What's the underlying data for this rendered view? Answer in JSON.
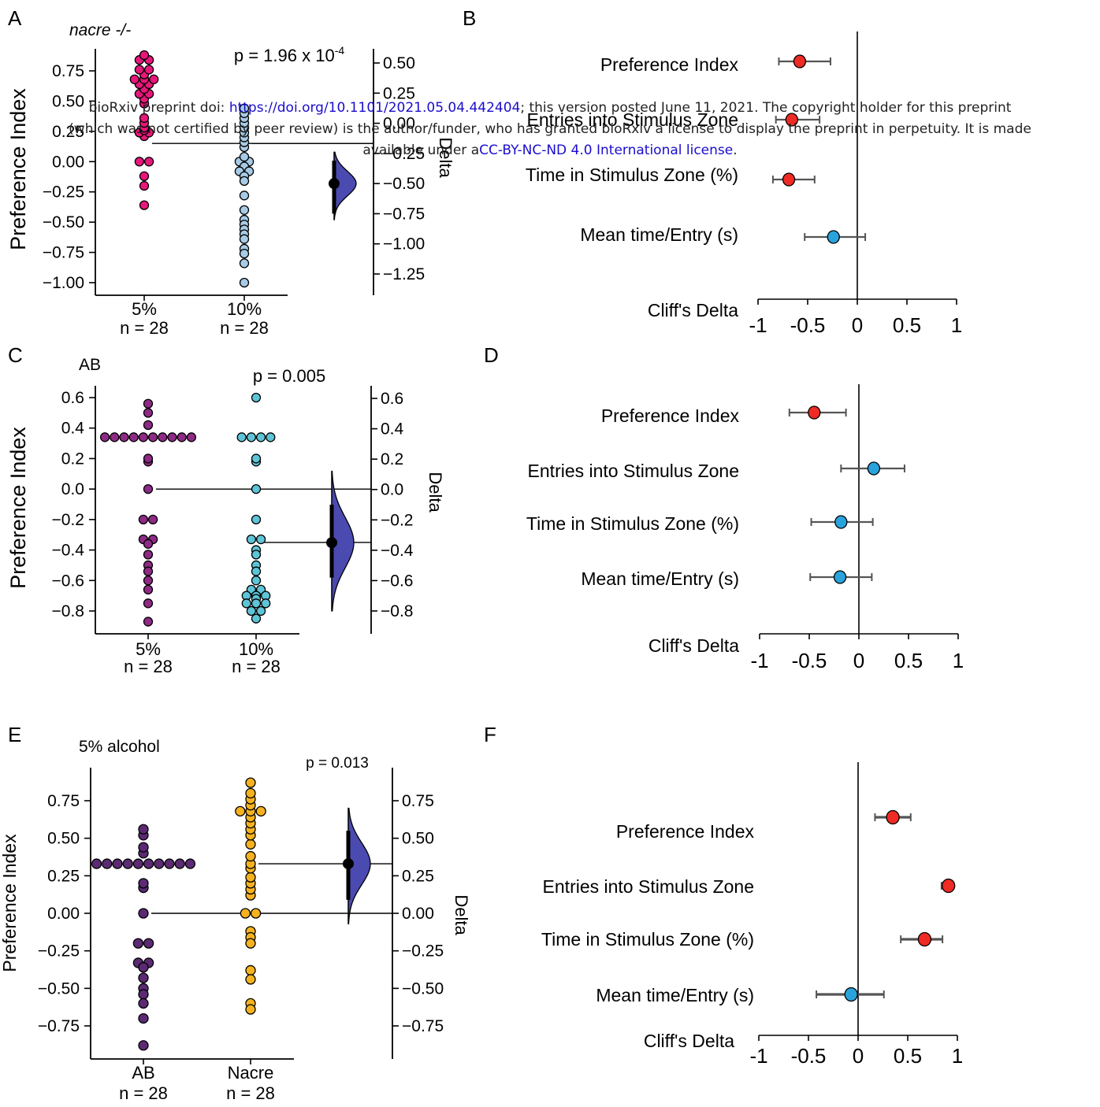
{
  "notice": {
    "line1_pre": "bioRxiv preprint doi: ",
    "doi_link": "https://doi.org/10.1101/2021.05.04.442404",
    "line1_post": "; this version posted June 11, 2021. The copyright holder for this preprint",
    "line2": "(which was not certified by peer review) is the author/funder, who has granted bioRxiv a license to display the preprint in perpetuity. It is made",
    "line3_pre": "available under a",
    "license_link": "CC-BY-NC-ND 4.0 International license",
    "line3_post": "."
  },
  "colors": {
    "pink": "#e8177a",
    "lightblue": "#a7cbe6",
    "purple": "#8e2a86",
    "cyan": "#5ec4d7",
    "darkpurple": "#5b2a73",
    "gold": "#f6b21e",
    "halfviolin": "#4a4ab0",
    "red": "#ee2b24",
    "blue": "#2aa3dc"
  },
  "chart_data": [
    {
      "panel": "A",
      "type": "scatter",
      "title": "nacre -/-",
      "ylabel": "Preference Index",
      "y2label": "Delta",
      "pvalue": "p = 1.96 x 10",
      "pvalue_exp": "-4",
      "ylim": [
        -1.05,
        0.85
      ],
      "yticks": [
        "0.75",
        "0.50",
        "0.25",
        "0.00",
        "−0.25",
        "−0.50",
        "−0.75",
        "−1.00"
      ],
      "ytick_values": [
        0.75,
        0.5,
        0.25,
        0.0,
        -0.25,
        -0.5,
        -0.75,
        -1.0
      ],
      "y2ticks": [
        "0.50",
        "0.25",
        "0.00",
        "−0.25",
        "−0.50",
        "−0.75",
        "−1.00",
        "−1.25"
      ],
      "y2tick_values": [
        0.5,
        0.25,
        0.0,
        -0.25,
        -0.5,
        -0.75,
        -1.0,
        -1.25
      ],
      "groups": [
        {
          "name": "5%",
          "n": "n = 28",
          "color": "pink",
          "mean": 0.15,
          "values": [
            0.88,
            0.84,
            0.84,
            0.76,
            0.76,
            0.72,
            0.68,
            0.68,
            0.68,
            0.64,
            0.64,
            0.6,
            0.56,
            0.56,
            0.52,
            0.48,
            0.36,
            0.32,
            0.28,
            0.26,
            0.24,
            0.24,
            0.21,
            0.0,
            0.0,
            -0.12,
            -0.2,
            -0.36
          ]
        },
        {
          "name": "10%",
          "n": "n = 28",
          "color": "lightblue",
          "mean": 0.15,
          "values": [
            0.44,
            0.4,
            0.36,
            0.32,
            0.28,
            0.24,
            0.2,
            0.16,
            0.12,
            0.04,
            0.0,
            0.0,
            -0.04,
            -0.08,
            -0.08,
            -0.12,
            -0.16,
            -0.28,
            -0.4,
            -0.48,
            -0.52,
            -0.56,
            -0.6,
            -0.64,
            -0.72,
            -0.76,
            -0.84,
            -1.0
          ]
        }
      ],
      "delta": {
        "mean": -0.5,
        "ci": [
          -0.75,
          -0.31
        ],
        "dist_range": [
          -0.8,
          -0.24
        ]
      }
    },
    {
      "panel": "C",
      "type": "scatter",
      "title": "AB",
      "ylabel": "Preference Index",
      "y2label": "Delta",
      "pvalue": "p = 0.005",
      "pvalue_exp": "",
      "ylim": [
        -0.93,
        0.67
      ],
      "yticks": [
        "0.6",
        "0.4",
        "0.2",
        "0.0",
        "−0.2",
        "−0.4",
        "−0.6",
        "−0.8"
      ],
      "ytick_values": [
        0.6,
        0.4,
        0.2,
        0.0,
        -0.2,
        -0.4,
        -0.6,
        -0.8
      ],
      "y2ticks": [
        "0.6",
        "0.4",
        "0.2",
        "0.0",
        "−0.2",
        "−0.4",
        "−0.6",
        "−0.8"
      ],
      "y2tick_values": [
        0.6,
        0.4,
        0.2,
        0.0,
        -0.2,
        -0.4,
        -0.6,
        -0.8
      ],
      "groups": [
        {
          "name": "5%",
          "n": "n = 28",
          "color": "purple",
          "mean": 0.0,
          "values": [
            0.56,
            0.5,
            0.42,
            0.34,
            0.34,
            0.34,
            0.34,
            0.34,
            0.34,
            0.34,
            0.34,
            0.34,
            0.34,
            0.2,
            0.18,
            0.0,
            -0.2,
            -0.2,
            -0.33,
            -0.33,
            -0.36,
            -0.43,
            -0.5,
            -0.54,
            -0.6,
            -0.66,
            -0.75,
            -0.87
          ]
        },
        {
          "name": "10%",
          "n": "n = 28",
          "color": "cyan",
          "mean": -0.35,
          "values": [
            0.6,
            0.34,
            0.34,
            0.34,
            0.34,
            0.2,
            0.18,
            0.0,
            -0.2,
            -0.33,
            -0.33,
            -0.4,
            -0.43,
            -0.5,
            -0.54,
            -0.6,
            -0.66,
            -0.66,
            -0.7,
            -0.7,
            -0.7,
            -0.72,
            -0.75,
            -0.75,
            -0.75,
            -0.8,
            -0.8,
            -0.85
          ]
        }
      ],
      "delta": {
        "mean": -0.35,
        "ci": [
          -0.58,
          -0.1
        ],
        "dist_range": [
          -0.8,
          0.12
        ]
      }
    },
    {
      "panel": "E",
      "type": "scatter",
      "title": "5% alcohol",
      "ylabel": "Preference Index",
      "y2label": "Delta",
      "pvalue": "p = 0.013",
      "pvalue_exp": "",
      "ylim": [
        -0.9,
        0.92
      ],
      "yticks": [
        "0.75",
        "0.50",
        "0.25",
        "0.00",
        "−0.25",
        "−0.50",
        "−0.75"
      ],
      "ytick_values": [
        0.75,
        0.5,
        0.25,
        0.0,
        -0.25,
        -0.5,
        -0.75
      ],
      "y2ticks": [
        "0.75",
        "0.50",
        "0.25",
        "0.00",
        "−0.25",
        "−0.50",
        "−0.75"
      ],
      "y2tick_values": [
        0.75,
        0.5,
        0.25,
        0.0,
        -0.25,
        -0.5,
        -0.75
      ],
      "groups": [
        {
          "name": "AB",
          "n": "n = 28",
          "color": "darkpurple",
          "mean": 0.0,
          "values": [
            0.56,
            0.52,
            0.44,
            0.4,
            0.33,
            0.33,
            0.33,
            0.33,
            0.33,
            0.33,
            0.33,
            0.33,
            0.33,
            0.33,
            0.2,
            0.17,
            0.0,
            -0.2,
            -0.2,
            -0.33,
            -0.33,
            -0.36,
            -0.43,
            -0.5,
            -0.54,
            -0.6,
            -0.7,
            -0.88
          ]
        },
        {
          "name": "Nacre",
          "n": "n = 28",
          "color": "gold",
          "mean": 0.33,
          "values": [
            0.87,
            0.8,
            0.76,
            0.72,
            0.68,
            0.68,
            0.68,
            0.64,
            0.6,
            0.56,
            0.52,
            0.46,
            0.38,
            0.33,
            0.3,
            0.24,
            0.2,
            0.16,
            0.12,
            0.0,
            0.0,
            -0.12,
            -0.16,
            -0.2,
            -0.38,
            -0.44,
            -0.6,
            -0.64
          ]
        }
      ],
      "delta": {
        "mean": 0.33,
        "ci": [
          0.09,
          0.55
        ],
        "dist_range": [
          -0.07,
          0.7
        ]
      }
    },
    {
      "panel": "B",
      "type": "scatter",
      "xlabel": "Cliff's Delta",
      "xlim": [
        -1,
        1
      ],
      "xticks": [
        "-1",
        "-0.5",
        "0",
        "0.5",
        "1"
      ],
      "xtick_values": [
        -1,
        -0.5,
        0,
        0.5,
        1
      ],
      "rows": [
        {
          "label": "Preference Index",
          "value": -0.58,
          "ci": [
            -0.79,
            -0.27
          ],
          "color": "red"
        },
        {
          "label": "Entries into Stimulus Zone",
          "value": -0.66,
          "ci": [
            -0.82,
            -0.38
          ],
          "color": "red"
        },
        {
          "label": "Time in Stimulus Zone (%)",
          "value": -0.69,
          "ci": [
            -0.85,
            -0.43
          ],
          "color": "red"
        },
        {
          "label": "Mean time/Entry (s)",
          "value": -0.24,
          "ci": [
            -0.53,
            0.08
          ],
          "color": "blue"
        }
      ]
    },
    {
      "panel": "D",
      "type": "scatter",
      "xlabel": "Cliff's Delta",
      "xlim": [
        -1,
        1
      ],
      "xticks": [
        "-1",
        "-0.5",
        "0",
        "0.5",
        "1"
      ],
      "xtick_values": [
        -1,
        -0.5,
        0,
        0.5,
        1
      ],
      "rows": [
        {
          "label": "Preference Index",
          "value": -0.45,
          "ci": [
            -0.7,
            -0.13
          ],
          "color": "red"
        },
        {
          "label": "Entries into Stimulus Zone",
          "value": 0.15,
          "ci": [
            -0.18,
            0.46
          ],
          "color": "blue"
        },
        {
          "label": "Time in Stimulus Zone (%)",
          "value": -0.18,
          "ci": [
            -0.48,
            0.14
          ],
          "color": "blue"
        },
        {
          "label": "Mean time/Entry (s)",
          "value": -0.19,
          "ci": [
            -0.49,
            0.13
          ],
          "color": "blue"
        }
      ]
    },
    {
      "panel": "F",
      "type": "scatter",
      "xlabel": "Cliff's Delta",
      "xlim": [
        -1,
        1
      ],
      "xticks": [
        "-1",
        "-0.5",
        "0",
        "0.5",
        "1"
      ],
      "xtick_values": [
        -1,
        -0.5,
        0,
        0.5,
        1
      ],
      "rows": [
        {
          "label": "Preference Index",
          "value": 0.35,
          "ci": [
            0.17,
            0.53
          ],
          "color": "red"
        },
        {
          "label": "Entries into Stimulus Zone",
          "value": 0.91,
          "ci": [
            0.84,
            0.95
          ],
          "color": "red"
        },
        {
          "label": "Time in Stimulus Zone (%)",
          "value": 0.67,
          "ci": [
            0.43,
            0.85
          ],
          "color": "red"
        },
        {
          "label": "Mean time/Entry (s)",
          "value": -0.07,
          "ci": [
            -0.42,
            0.26
          ],
          "color": "blue"
        }
      ]
    }
  ]
}
